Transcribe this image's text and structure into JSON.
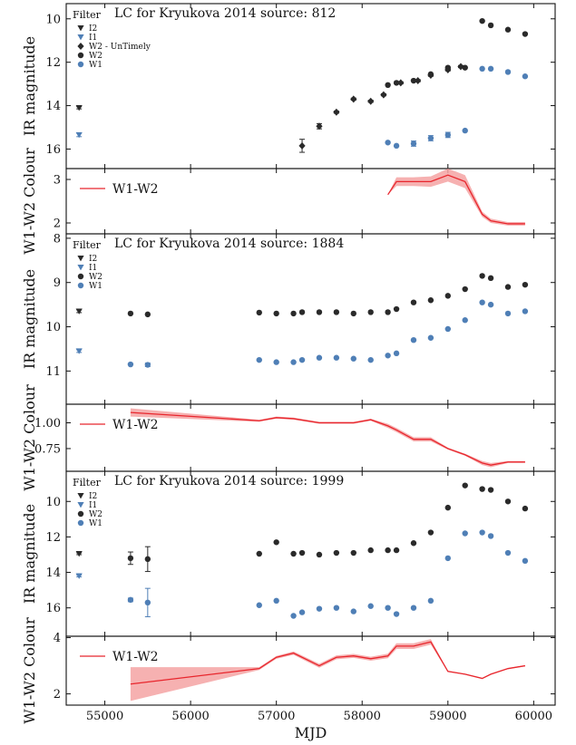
{
  "x_axis": {
    "label": "MJD",
    "ticks": [
      55000,
      56000,
      57000,
      58000,
      59000,
      60000
    ],
    "range": [
      54550,
      60250
    ]
  },
  "colors": {
    "w1": "#4f7fb6",
    "w2": "#2a2a2a",
    "i1": "#4f7fb6",
    "i2": "#2a2a2a",
    "colour_line": "#e8262d",
    "colour_band": "#f4a3a3"
  },
  "legend_title": "Filter",
  "colour_series_label": "W1-W2",
  "chart_data": [
    {
      "type": "scatter",
      "title": "LC for Kryukova 2014 source: 812",
      "ylabel": "IR magnitude",
      "ylim": [
        16.9,
        9.3
      ],
      "yticks": [
        10,
        12,
        14,
        16
      ],
      "legend": [
        "I2",
        "I1",
        "W2 - UnTimely",
        "W2",
        "W1"
      ],
      "series": [
        {
          "name": "I2",
          "marker": "triangle-down",
          "x": [
            54700
          ],
          "y": [
            14.1
          ],
          "yerr": [
            0.05
          ]
        },
        {
          "name": "I1",
          "marker": "triangle-down",
          "x": [
            54700
          ],
          "y": [
            15.35
          ],
          "yerr": [
            0.08
          ]
        },
        {
          "name": "W2 - UnTimely",
          "marker": "diamond",
          "x": [
            57300,
            57500,
            57700,
            57900,
            58100,
            58250,
            58450,
            58650,
            58800,
            59000,
            59150
          ],
          "y": [
            15.85,
            14.95,
            14.3,
            13.7,
            13.8,
            13.5,
            12.95,
            12.85,
            12.6,
            12.35,
            12.2
          ],
          "yerr": [
            0.3,
            0.12,
            0.05,
            0.05,
            0.05,
            0.05,
            0.05,
            0.05,
            0.05,
            0.05,
            0.05
          ]
        },
        {
          "name": "W2",
          "marker": "circle",
          "x": [
            58300,
            58400,
            58600,
            58800,
            59000,
            59200,
            59400,
            59500,
            59700,
            59900
          ],
          "y": [
            13.05,
            12.95,
            12.85,
            12.55,
            12.25,
            12.25,
            10.1,
            10.3,
            10.5,
            10.7
          ],
          "yerr": [
            0,
            0,
            0,
            0,
            0,
            0,
            0,
            0,
            0,
            0
          ]
        },
        {
          "name": "W1",
          "marker": "circle",
          "x": [
            58300,
            58400,
            58600,
            58800,
            59000,
            59200,
            59400,
            59500,
            59700,
            59900
          ],
          "y": [
            15.7,
            15.85,
            15.75,
            15.5,
            15.35,
            15.15,
            12.3,
            12.3,
            12.45,
            12.65
          ],
          "yerr": [
            0,
            0,
            0.12,
            0.12,
            0.12,
            0,
            0,
            0,
            0,
            0
          ]
        }
      ]
    },
    {
      "type": "line",
      "ylabel": "W1-W2 Colour",
      "ylim": [
        1.75,
        3.25
      ],
      "yticks": [
        2,
        3
      ],
      "legend": [
        "W1-W2"
      ],
      "series": [
        {
          "name": "W1-W2",
          "x": [
            58300,
            58400,
            58600,
            58800,
            59000,
            59200,
            59400,
            59500,
            59700,
            59900
          ],
          "y": [
            2.65,
            2.95,
            2.95,
            2.95,
            3.1,
            2.95,
            2.2,
            2.05,
            1.98,
            1.98
          ],
          "err": [
            0.0,
            0.1,
            0.1,
            0.12,
            0.15,
            0.15,
            0.06,
            0.05,
            0.04,
            0.04
          ]
        }
      ]
    },
    {
      "type": "scatter",
      "title": "LC for Kryukova 2014 source: 1884",
      "ylabel": "IR magnitude",
      "ylim": [
        11.75,
        7.9
      ],
      "yticks": [
        8,
        9,
        10,
        11
      ],
      "legend": [
        "I2",
        "I1",
        "W2",
        "W1"
      ],
      "series": [
        {
          "name": "I2",
          "marker": "triangle-down",
          "x": [
            54700
          ],
          "y": [
            9.65
          ],
          "yerr": [
            0.03
          ]
        },
        {
          "name": "I1",
          "marker": "triangle-down",
          "x": [
            54700
          ],
          "y": [
            10.55
          ],
          "yerr": [
            0.03
          ]
        },
        {
          "name": "W2",
          "marker": "circle",
          "x": [
            55300,
            55500,
            56800,
            57000,
            57200,
            57300,
            57500,
            57700,
            57900,
            58100,
            58300,
            58400,
            58600,
            58800,
            59000,
            59200,
            59400,
            59500,
            59700,
            59900
          ],
          "y": [
            9.7,
            9.72,
            9.68,
            9.7,
            9.7,
            9.67,
            9.67,
            9.67,
            9.7,
            9.67,
            9.67,
            9.6,
            9.45,
            9.4,
            9.3,
            9.15,
            8.85,
            8.9,
            9.1,
            9.05
          ],
          "yerr": [
            0,
            0,
            0,
            0,
            0,
            0,
            0,
            0,
            0,
            0,
            0,
            0,
            0,
            0,
            0,
            0,
            0,
            0,
            0,
            0
          ]
        },
        {
          "name": "W1",
          "marker": "circle",
          "x": [
            55300,
            55500,
            56800,
            57000,
            57200,
            57300,
            57500,
            57700,
            57900,
            58100,
            58300,
            58400,
            58600,
            58800,
            59000,
            59200,
            59400,
            59500,
            59700,
            59900
          ],
          "y": [
            10.85,
            10.86,
            10.75,
            10.8,
            10.8,
            10.75,
            10.7,
            10.7,
            10.72,
            10.75,
            10.65,
            10.6,
            10.3,
            10.25,
            10.05,
            9.85,
            9.45,
            9.5,
            9.7,
            9.65
          ],
          "yerr": [
            0,
            0.04,
            0,
            0,
            0,
            0,
            0,
            0,
            0,
            0,
            0,
            0,
            0,
            0,
            0,
            0,
            0,
            0,
            0,
            0
          ]
        }
      ]
    },
    {
      "type": "line",
      "ylabel": "W1-W2 Colour",
      "ylim": [
        0.53,
        1.18
      ],
      "yticks": [
        0.75,
        1.0
      ],
      "yticklabels": [
        "0.75",
        "1.00"
      ],
      "legend": [
        "W1-W2"
      ],
      "series": [
        {
          "name": "W1-W2",
          "x": [
            55300,
            56800,
            57000,
            57200,
            57500,
            57700,
            57900,
            58100,
            58300,
            58400,
            58600,
            58800,
            59000,
            59200,
            59400,
            59500,
            59700,
            59900
          ],
          "y": [
            1.1,
            1.02,
            1.05,
            1.04,
            1.0,
            1.0,
            1.0,
            1.03,
            0.97,
            0.93,
            0.84,
            0.84,
            0.75,
            0.69,
            0.61,
            0.59,
            0.62,
            0.62
          ],
          "err": [
            0.04,
            0.01,
            0.01,
            0.01,
            0.01,
            0.01,
            0.01,
            0.01,
            0.02,
            0.02,
            0.02,
            0.02,
            0.01,
            0.01,
            0.02,
            0.02,
            0.01,
            0.01
          ]
        }
      ]
    },
    {
      "type": "scatter",
      "title": "LC for Kryukova 2014 source: 1999",
      "ylabel": "IR magnitude",
      "ylim": [
        17.6,
        8.3
      ],
      "yticks": [
        10,
        12,
        14,
        16
      ],
      "legend": [
        "I2",
        "I1",
        "W2",
        "W1"
      ],
      "series": [
        {
          "name": "I2",
          "marker": "triangle-down",
          "x": [
            54700
          ],
          "y": [
            12.95
          ],
          "yerr": [
            0.05
          ]
        },
        {
          "name": "I1",
          "marker": "triangle-down",
          "x": [
            54700
          ],
          "y": [
            14.2
          ],
          "yerr": [
            0.05
          ]
        },
        {
          "name": "W2",
          "marker": "circle",
          "x": [
            55300,
            55500,
            56800,
            57000,
            57200,
            57300,
            57500,
            57700,
            57900,
            58100,
            58300,
            58400,
            58600,
            58800,
            59000,
            59200,
            59400,
            59500,
            59700,
            59900
          ],
          "y": [
            13.2,
            13.25,
            12.95,
            12.3,
            12.95,
            12.9,
            13.0,
            12.9,
            12.9,
            12.75,
            12.75,
            12.75,
            12.35,
            11.75,
            10.35,
            9.1,
            9.3,
            9.35,
            10.0,
            10.4
          ],
          "yerr": [
            0.35,
            0.7,
            0,
            0,
            0,
            0,
            0,
            0,
            0,
            0,
            0,
            0,
            0,
            0,
            0,
            0,
            0,
            0,
            0,
            0
          ]
        },
        {
          "name": "W1",
          "marker": "circle",
          "x": [
            55300,
            55500,
            56800,
            57000,
            57200,
            57300,
            57500,
            57700,
            57900,
            58100,
            58300,
            58400,
            58600,
            58800,
            59000,
            59200,
            59400,
            59500,
            59700,
            59900
          ],
          "y": [
            15.55,
            15.7,
            15.85,
            15.6,
            16.45,
            16.25,
            16.05,
            16.0,
            16.2,
            15.9,
            16.0,
            16.35,
            16.0,
            15.6,
            13.2,
            11.8,
            11.75,
            11.95,
            12.9,
            13.35
          ],
          "yerr": [
            0.1,
            0.8,
            0,
            0,
            0,
            0,
            0,
            0,
            0,
            0,
            0,
            0,
            0,
            0,
            0,
            0,
            0,
            0,
            0,
            0
          ]
        }
      ]
    },
    {
      "type": "line",
      "ylabel": "W1-W2 Colour",
      "ylim": [
        1.6,
        4.05
      ],
      "yticks": [
        2,
        4
      ],
      "legend": [
        "W1-W2"
      ],
      "series": [
        {
          "name": "W1-W2",
          "x": [
            55300,
            56800,
            57000,
            57200,
            57500,
            57700,
            57900,
            58100,
            58300,
            58400,
            58600,
            58800,
            59000,
            59200,
            59400,
            59500,
            59700,
            59900
          ],
          "y": [
            2.35,
            2.9,
            3.3,
            3.45,
            3.0,
            3.3,
            3.35,
            3.25,
            3.35,
            3.7,
            3.7,
            3.85,
            2.8,
            2.7,
            2.55,
            2.7,
            2.9,
            3.0
          ],
          "err": [
            0.6,
            0.05,
            0.05,
            0.06,
            0.07,
            0.07,
            0.07,
            0.07,
            0.08,
            0.1,
            0.1,
            0.1,
            0.02,
            0.02,
            0.02,
            0.02,
            0.02,
            0.02
          ]
        }
      ]
    }
  ]
}
